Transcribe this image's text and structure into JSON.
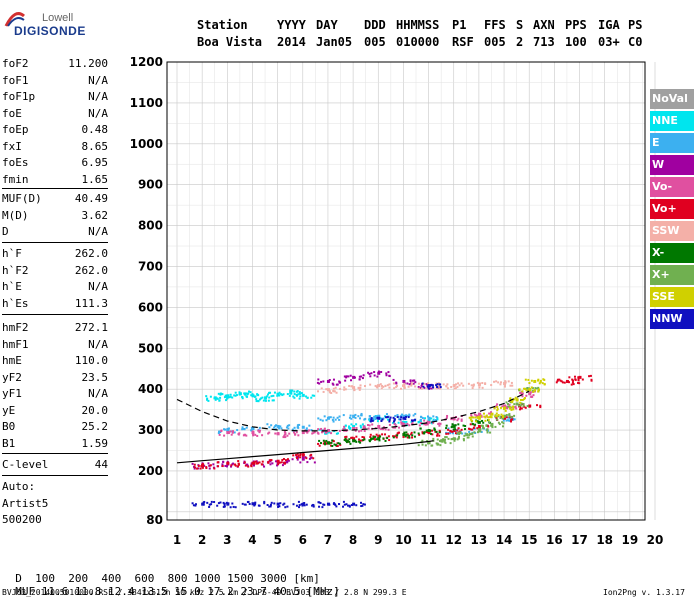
{
  "logo": {
    "top": "Lowell",
    "bottom": "DIGISONDE"
  },
  "header": {
    "labels": {
      "station": "Station",
      "yyyy": "YYYY",
      "day": "DAY",
      "ddd": "DDD",
      "hhmmss": "HHMMSS",
      "p1": "P1",
      "ffs": "FFS",
      "s": "S",
      "axn": "AXN",
      "pps": "PPS",
      "iga": "IGA",
      "ps": "PS"
    },
    "values": {
      "station": "Boa Vista",
      "yyyy": "2014",
      "day": "Jan05",
      "ddd": "005",
      "hhmmss": "010000",
      "p1": "RSF",
      "ffs": "005",
      "s": "2",
      "axn": "713",
      "pps": "100",
      "iga": "03+",
      "ps": "C0"
    }
  },
  "params": {
    "group1": [
      {
        "name": "foF2",
        "value": "11.200"
      },
      {
        "name": "foF1",
        "value": "N/A"
      },
      {
        "name": "foF1p",
        "value": "N/A"
      },
      {
        "name": "foE",
        "value": "N/A"
      },
      {
        "name": "foEp",
        "value": "0.48"
      },
      {
        "name": "fxI",
        "value": "8.65"
      },
      {
        "name": "foEs",
        "value": "6.95"
      },
      {
        "name": "fmin",
        "value": "1.65"
      }
    ],
    "group2": [
      {
        "name": "MUF(D)",
        "value": "40.49"
      },
      {
        "name": "M(D)",
        "value": "3.62"
      },
      {
        "name": "D",
        "value": "N/A"
      }
    ],
    "group3": [
      {
        "name": "h`F",
        "value": "262.0"
      },
      {
        "name": "h`F2",
        "value": "262.0"
      },
      {
        "name": "h`E",
        "value": "N/A"
      },
      {
        "name": "h`Es",
        "value": "111.3"
      }
    ],
    "group4": [
      {
        "name": "hmF2",
        "value": "272.1"
      },
      {
        "name": "hmF1",
        "value": "N/A"
      },
      {
        "name": "hmE",
        "value": "110.0"
      },
      {
        "name": "yF2",
        "value": "23.5"
      },
      {
        "name": "yF1",
        "value": "N/A"
      },
      {
        "name": "yE",
        "value": "20.0"
      },
      {
        "name": "B0",
        "value": "25.2"
      },
      {
        "name": "B1",
        "value": "1.59"
      }
    ],
    "clevel": {
      "name": "C-level",
      "value": "44"
    }
  },
  "autoscale": {
    "line1": "Auto:",
    "line2": "Artist5",
    "line3": "500200"
  },
  "legend": [
    {
      "label": "NoVal",
      "color": "#a0a0a0"
    },
    {
      "label": "NNE",
      "color": "#00e5ee"
    },
    {
      "label": "E",
      "color": "#3cb0f0"
    },
    {
      "label": "W",
      "color": "#a000a0"
    },
    {
      "label": "Vo-",
      "color": "#e050a0"
    },
    {
      "label": "Vo+",
      "color": "#e00020"
    },
    {
      "label": "SSW",
      "color": "#f4b0a8"
    },
    {
      "label": "X-",
      "color": "#007800"
    },
    {
      "label": "X+",
      "color": "#70b050"
    },
    {
      "label": "SSE",
      "color": "#d0d000"
    },
    {
      "label": "NNW",
      "color": "#1010c0"
    }
  ],
  "chart_data": {
    "type": "scatter",
    "title": "",
    "xlabel": "",
    "ylabel": "",
    "xlim": [
      1,
      20
    ],
    "ylim": [
      80,
      1200
    ],
    "x_ticks": [
      1,
      2,
      3,
      4,
      5,
      6,
      7,
      8,
      9,
      10,
      11,
      12,
      13,
      14,
      15,
      16,
      17,
      18,
      19,
      20
    ],
    "y_ticks": [
      80,
      100,
      200,
      300,
      400,
      500,
      600,
      700,
      800,
      900,
      1000,
      1100,
      1200
    ],
    "y_tick_labels": [
      "80",
      "",
      "200",
      "300",
      "400",
      "500",
      "600",
      "700",
      "800",
      "900",
      "1000",
      "1100",
      "1200"
    ],
    "grid": true,
    "series": [
      {
        "name": "NNE",
        "color": "#00e5ee",
        "x": [
          2.5,
          3.0,
          3.5,
          4.0,
          4.5,
          5.0,
          5.5,
          6.0,
          7.0,
          8.0,
          9.0,
          10.0,
          11.0
        ],
        "y": [
          380,
          385,
          390,
          385,
          380,
          388,
          392,
          386,
          300,
          310,
          330,
          320,
          325
        ]
      },
      {
        "name": "E",
        "color": "#3cb0f0",
        "x": [
          3.0,
          4.0,
          5.0,
          6.0,
          7.0,
          8.0,
          9.0,
          10.0,
          11.0,
          12.0,
          13.0,
          14.0
        ],
        "y": [
          300,
          305,
          310,
          308,
          330,
          335,
          335,
          335,
          330,
          300,
          300,
          330
        ]
      },
      {
        "name": "W",
        "color": "#a000a0",
        "x": [
          2.0,
          3.0,
          4.0,
          5.0,
          6.0,
          7.0,
          8.0,
          9.0,
          10.0,
          11.0
        ],
        "y": [
          215,
          218,
          220,
          222,
          230,
          420,
          430,
          440,
          420,
          410
        ]
      },
      {
        "name": "Vo-",
        "color": "#e050a0",
        "x": [
          3.0,
          4.0,
          5.0,
          6.0,
          7.0,
          8.0,
          9.0,
          10.0,
          11.0,
          12.0,
          13.0,
          14.0,
          15.0
        ],
        "y": [
          295,
          295,
          292,
          295,
          300,
          305,
          310,
          315,
          320,
          330,
          340,
          360,
          390
        ]
      },
      {
        "name": "Vo+",
        "color": "#e00020",
        "x": [
          2.0,
          3.0,
          4.0,
          5.0,
          6.0,
          7.0,
          8.0,
          9.0,
          10.0,
          11.0,
          12.0,
          13.0,
          14.0,
          15.0,
          16.5,
          17.0
        ],
        "y": [
          215,
          220,
          220,
          225,
          240,
          270,
          280,
          285,
          290,
          295,
          300,
          310,
          330,
          360,
          420,
          430
        ]
      },
      {
        "name": "SSW",
        "color": "#f4b0a8",
        "x": [
          7.0,
          8.0,
          9.0,
          10.0,
          11.0,
          12.0,
          13.0,
          14.0
        ],
        "y": [
          400,
          405,
          410,
          410,
          410,
          410,
          412,
          415
        ]
      },
      {
        "name": "X-",
        "color": "#007800",
        "x": [
          7.0,
          8.0,
          9.0,
          10.0,
          11.0,
          12.0,
          13.0
        ],
        "y": [
          270,
          275,
          280,
          290,
          300,
          310,
          320
        ]
      },
      {
        "name": "X+",
        "color": "#70b050",
        "x": [
          11.0,
          11.5,
          12.0,
          12.5,
          13.0,
          13.5,
          14.0,
          14.5,
          15.0
        ],
        "y": [
          270,
          275,
          280,
          290,
          300,
          315,
          335,
          365,
          400
        ]
      },
      {
        "name": "SSE",
        "color": "#d0d000",
        "x": [
          13.0,
          13.5,
          14.0,
          14.5,
          15.0,
          15.2
        ],
        "y": [
          330,
          340,
          355,
          375,
          400,
          420
        ]
      },
      {
        "name": "NNW",
        "color": "#1010c0",
        "x": [
          2.0,
          3.0,
          4.0,
          5.0,
          6.0,
          7.0,
          8.0,
          9.0,
          10.0,
          11.0
        ],
        "y": [
          120,
          120,
          121,
          120,
          120,
          120,
          120,
          330,
          330,
          410
        ]
      }
    ],
    "profile_curve": {
      "x": [
        1.0,
        2.0,
        3.0,
        4.0,
        5.0,
        6.0,
        7.0,
        8.0,
        9.0,
        10.0,
        11.0,
        11.2
      ],
      "y": [
        220,
        225,
        230,
        235,
        240,
        245,
        250,
        255,
        260,
        265,
        272,
        274
      ]
    },
    "trace_curve": {
      "x": [
        1.0,
        2.0,
        3.0,
        4.0,
        5.0,
        6.0,
        7.0,
        8.0,
        9.0,
        10.0,
        11.0,
        12.0,
        13.0,
        14.0,
        15.0
      ],
      "y": [
        375,
        345,
        322,
        308,
        300,
        298,
        298,
        300,
        304,
        310,
        318,
        330,
        345,
        365,
        395
      ]
    }
  },
  "footer": {
    "d_label": "D",
    "d_values": [
      "100",
      "200",
      "400",
      "600",
      "800",
      "1000",
      "1500",
      "3000"
    ],
    "d_unit": "[km]",
    "muf_label": "MUF",
    "muf_values": [
      "11.6",
      "11.8",
      "12.4",
      "13.5",
      "15.0",
      "17.2",
      "23.7",
      "40.5"
    ],
    "muf_unit": "[MHz]",
    "info": "BVJ03_2014005010000.RSF / 384fx512h 50 kHz 2.5 km / DPS-4D BVJ03 003 / 2.8 N 299.3 E",
    "version": "Ion2Png v. 1.3.17"
  }
}
